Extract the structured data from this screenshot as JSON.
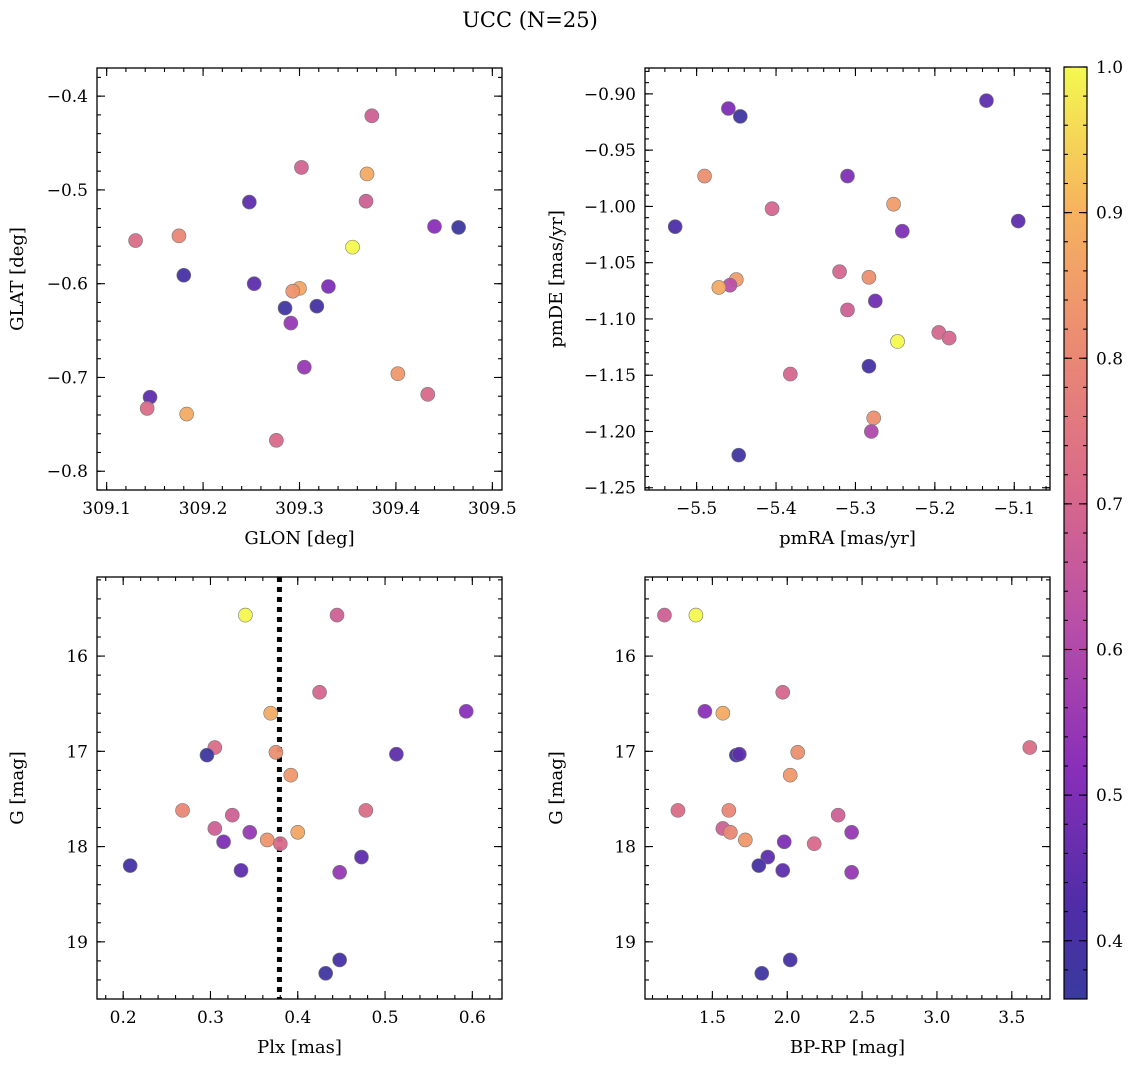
{
  "title": "UCC (N=25)",
  "colorbar": {
    "min": 0.36,
    "max": 1.0,
    "ticks": [
      0.4,
      0.5,
      0.6,
      0.7,
      0.8,
      0.9,
      1.0
    ],
    "tick_labels": [
      "0.4",
      "0.5",
      "0.6",
      "0.7",
      "0.8",
      "0.9",
      "1.0"
    ],
    "colormap": "plasma"
  },
  "chart_data": [
    {
      "type": "scatter",
      "id": "glon-glat",
      "xlabel": "GLON [deg]",
      "ylabel": "GLAT [deg]",
      "xlim": [
        309.09,
        309.51
      ],
      "ylim": [
        -0.82,
        -0.37
      ],
      "invert_y": false,
      "xticks": [
        309.1,
        309.2,
        309.3,
        309.4,
        309.5
      ],
      "xtick_labels": [
        "309.1",
        "309.2",
        "309.3",
        "309.4",
        "309.5"
      ],
      "yticks": [
        -0.4,
        -0.5,
        -0.6,
        -0.7,
        -0.8
      ],
      "ytick_labels": [
        "−0.4",
        "−0.5",
        "−0.6",
        "−0.7",
        "−0.8"
      ],
      "points": [
        {
          "x": 309.375,
          "y": -0.421,
          "c": 0.68
        },
        {
          "x": 309.302,
          "y": -0.476,
          "c": 0.69
        },
        {
          "x": 309.37,
          "y": -0.483,
          "c": 0.88
        },
        {
          "x": 309.369,
          "y": -0.512,
          "c": 0.68
        },
        {
          "x": 309.248,
          "y": -0.513,
          "c": 0.45
        },
        {
          "x": 309.44,
          "y": -0.539,
          "c": 0.52
        },
        {
          "x": 309.465,
          "y": -0.54,
          "c": 0.37
        },
        {
          "x": 309.175,
          "y": -0.549,
          "c": 0.8
        },
        {
          "x": 309.13,
          "y": -0.554,
          "c": 0.72
        },
        {
          "x": 309.355,
          "y": -0.561,
          "c": 1.0
        },
        {
          "x": 309.18,
          "y": -0.591,
          "c": 0.4
        },
        {
          "x": 309.253,
          "y": -0.6,
          "c": 0.45
        },
        {
          "x": 309.33,
          "y": -0.603,
          "c": 0.5
        },
        {
          "x": 309.3,
          "y": -0.605,
          "c": 0.87
        },
        {
          "x": 309.293,
          "y": -0.608,
          "c": 0.83
        },
        {
          "x": 309.318,
          "y": -0.624,
          "c": 0.4
        },
        {
          "x": 309.285,
          "y": -0.626,
          "c": 0.38
        },
        {
          "x": 309.291,
          "y": -0.642,
          "c": 0.55
        },
        {
          "x": 309.305,
          "y": -0.689,
          "c": 0.55
        },
        {
          "x": 309.402,
          "y": -0.696,
          "c": 0.84
        },
        {
          "x": 309.433,
          "y": -0.718,
          "c": 0.71
        },
        {
          "x": 309.145,
          "y": -0.721,
          "c": 0.45
        },
        {
          "x": 309.142,
          "y": -0.733,
          "c": 0.72
        },
        {
          "x": 309.183,
          "y": -0.739,
          "c": 0.88
        },
        {
          "x": 309.276,
          "y": -0.767,
          "c": 0.71
        }
      ]
    },
    {
      "type": "scatter",
      "id": "pmra-pmde",
      "xlabel": "pmRA [mas/yr]",
      "ylabel": "pmDE [mas/yr]",
      "xlim": [
        -5.565,
        -5.055
      ],
      "ylim": [
        -1.252,
        -0.877
      ],
      "invert_y": false,
      "xticks": [
        -5.5,
        -5.4,
        -5.3,
        -5.2,
        -5.1
      ],
      "xtick_labels": [
        "−5.5",
        "−5.4",
        "−5.3",
        "−5.2",
        "−5.1"
      ],
      "yticks": [
        -0.9,
        -0.95,
        -1.0,
        -1.05,
        -1.1,
        -1.15,
        -1.2,
        -1.25
      ],
      "ytick_labels": [
        "−0.90",
        "−0.95",
        "−1.00",
        "−1.05",
        "−1.10",
        "−1.15",
        "−1.20",
        "−1.25"
      ],
      "points": [
        {
          "x": -5.135,
          "y": -0.906,
          "c": 0.45
        },
        {
          "x": -5.46,
          "y": -0.913,
          "c": 0.5
        },
        {
          "x": -5.445,
          "y": -0.92,
          "c": 0.38
        },
        {
          "x": -5.31,
          "y": -0.973,
          "c": 0.5
        },
        {
          "x": -5.49,
          "y": -0.973,
          "c": 0.82
        },
        {
          "x": -5.252,
          "y": -0.998,
          "c": 0.85
        },
        {
          "x": -5.405,
          "y": -1.002,
          "c": 0.7
        },
        {
          "x": -5.095,
          "y": -1.013,
          "c": 0.45
        },
        {
          "x": -5.527,
          "y": -1.018,
          "c": 0.42
        },
        {
          "x": -5.241,
          "y": -1.022,
          "c": 0.5
        },
        {
          "x": -5.32,
          "y": -1.058,
          "c": 0.7
        },
        {
          "x": -5.283,
          "y": -1.063,
          "c": 0.82
        },
        {
          "x": -5.45,
          "y": -1.065,
          "c": 0.85
        },
        {
          "x": -5.458,
          "y": -1.07,
          "c": 0.62
        },
        {
          "x": -5.472,
          "y": -1.072,
          "c": 0.88
        },
        {
          "x": -5.275,
          "y": -1.084,
          "c": 0.48
        },
        {
          "x": -5.31,
          "y": -1.092,
          "c": 0.68
        },
        {
          "x": -5.195,
          "y": -1.112,
          "c": 0.7
        },
        {
          "x": -5.182,
          "y": -1.117,
          "c": 0.7
        },
        {
          "x": -5.247,
          "y": -1.12,
          "c": 1.0
        },
        {
          "x": -5.283,
          "y": -1.142,
          "c": 0.4
        },
        {
          "x": -5.382,
          "y": -1.149,
          "c": 0.7
        },
        {
          "x": -5.277,
          "y": -1.188,
          "c": 0.82
        },
        {
          "x": -5.28,
          "y": -1.2,
          "c": 0.6
        },
        {
          "x": -5.447,
          "y": -1.221,
          "c": 0.38
        }
      ]
    },
    {
      "type": "scatter",
      "id": "plx-g",
      "xlabel": "Plx [mas]",
      "ylabel": "G [mag]",
      "xlim": [
        0.17,
        0.634
      ],
      "ylim": [
        15.17,
        19.6
      ],
      "invert_y": true,
      "vline": {
        "x": 0.379,
        "style": "dotted"
      },
      "xticks": [
        0.2,
        0.3,
        0.4,
        0.5,
        0.6
      ],
      "xtick_labels": [
        "0.2",
        "0.3",
        "0.4",
        "0.5",
        "0.6"
      ],
      "yticks": [
        16,
        17,
        18,
        19
      ],
      "ytick_labels": [
        "16",
        "17",
        "18",
        "19"
      ],
      "points": [
        {
          "x": 0.34,
          "y": 15.57,
          "c": 1.0
        },
        {
          "x": 0.445,
          "y": 15.57,
          "c": 0.68
        },
        {
          "x": 0.425,
          "y": 16.38,
          "c": 0.7
        },
        {
          "x": 0.593,
          "y": 16.58,
          "c": 0.52
        },
        {
          "x": 0.369,
          "y": 16.6,
          "c": 0.88
        },
        {
          "x": 0.305,
          "y": 16.96,
          "c": 0.72
        },
        {
          "x": 0.375,
          "y": 17.01,
          "c": 0.82
        },
        {
          "x": 0.296,
          "y": 17.04,
          "c": 0.37
        },
        {
          "x": 0.513,
          "y": 17.03,
          "c": 0.45
        },
        {
          "x": 0.392,
          "y": 17.25,
          "c": 0.84
        },
        {
          "x": 0.268,
          "y": 17.62,
          "c": 0.8
        },
        {
          "x": 0.478,
          "y": 17.62,
          "c": 0.72
        },
        {
          "x": 0.325,
          "y": 17.67,
          "c": 0.68
        },
        {
          "x": 0.305,
          "y": 17.81,
          "c": 0.68
        },
        {
          "x": 0.345,
          "y": 17.85,
          "c": 0.55
        },
        {
          "x": 0.4,
          "y": 17.85,
          "c": 0.87
        },
        {
          "x": 0.315,
          "y": 17.95,
          "c": 0.5
        },
        {
          "x": 0.365,
          "y": 17.93,
          "c": 0.83
        },
        {
          "x": 0.38,
          "y": 17.97,
          "c": 0.71
        },
        {
          "x": 0.473,
          "y": 18.11,
          "c": 0.45
        },
        {
          "x": 0.208,
          "y": 18.2,
          "c": 0.4
        },
        {
          "x": 0.335,
          "y": 18.25,
          "c": 0.45
        },
        {
          "x": 0.448,
          "y": 18.27,
          "c": 0.55
        },
        {
          "x": 0.448,
          "y": 19.19,
          "c": 0.4
        },
        {
          "x": 0.432,
          "y": 19.33,
          "c": 0.38
        }
      ]
    },
    {
      "type": "scatter",
      "id": "bprp-g",
      "xlabel": "BP-RP [mag]",
      "ylabel": "G [mag]",
      "xlim": [
        1.05,
        3.755
      ],
      "ylim": [
        15.17,
        19.6
      ],
      "invert_y": true,
      "xticks": [
        1.5,
        2.0,
        2.5,
        3.0,
        3.5
      ],
      "xtick_labels": [
        "1.5",
        "2.0",
        "2.5",
        "3.0",
        "3.5"
      ],
      "yticks": [
        16,
        17,
        18,
        19
      ],
      "ytick_labels": [
        "16",
        "17",
        "18",
        "19"
      ],
      "points": [
        {
          "x": 1.18,
          "y": 15.57,
          "c": 0.68
        },
        {
          "x": 1.39,
          "y": 15.57,
          "c": 1.0
        },
        {
          "x": 1.97,
          "y": 16.38,
          "c": 0.7
        },
        {
          "x": 1.45,
          "y": 16.58,
          "c": 0.52
        },
        {
          "x": 1.57,
          "y": 16.6,
          "c": 0.88
        },
        {
          "x": 3.62,
          "y": 16.96,
          "c": 0.72
        },
        {
          "x": 2.07,
          "y": 17.01,
          "c": 0.82
        },
        {
          "x": 1.66,
          "y": 17.04,
          "c": 0.37
        },
        {
          "x": 1.68,
          "y": 17.03,
          "c": 0.45
        },
        {
          "x": 2.02,
          "y": 17.25,
          "c": 0.84
        },
        {
          "x": 1.27,
          "y": 17.62,
          "c": 0.72
        },
        {
          "x": 1.61,
          "y": 17.62,
          "c": 0.8
        },
        {
          "x": 2.34,
          "y": 17.67,
          "c": 0.68
        },
        {
          "x": 1.57,
          "y": 17.81,
          "c": 0.68
        },
        {
          "x": 1.62,
          "y": 17.85,
          "c": 0.8
        },
        {
          "x": 2.43,
          "y": 17.85,
          "c": 0.55
        },
        {
          "x": 1.72,
          "y": 17.93,
          "c": 0.84
        },
        {
          "x": 1.98,
          "y": 17.95,
          "c": 0.5
        },
        {
          "x": 2.18,
          "y": 17.97,
          "c": 0.71
        },
        {
          "x": 1.87,
          "y": 18.11,
          "c": 0.45
        },
        {
          "x": 1.81,
          "y": 18.2,
          "c": 0.4
        },
        {
          "x": 1.97,
          "y": 18.25,
          "c": 0.45
        },
        {
          "x": 2.43,
          "y": 18.27,
          "c": 0.55
        },
        {
          "x": 2.02,
          "y": 19.19,
          "c": 0.4
        },
        {
          "x": 1.83,
          "y": 19.33,
          "c": 0.38
        }
      ]
    }
  ]
}
